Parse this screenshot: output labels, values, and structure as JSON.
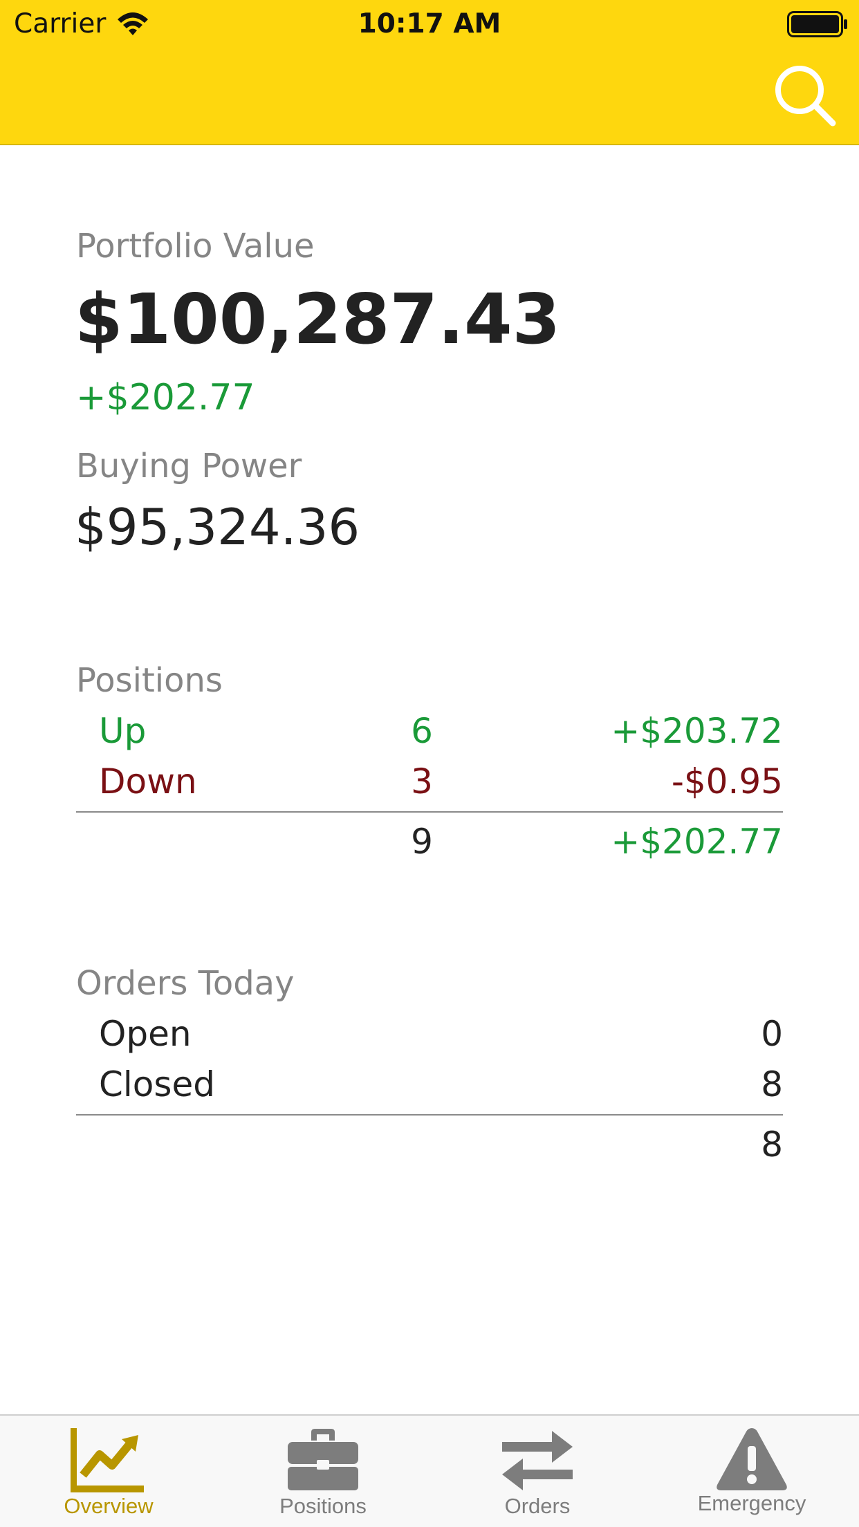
{
  "status_bar": {
    "carrier": "Carrier",
    "time": "10:17 AM",
    "wifi_icon": "wifi-icon",
    "battery_icon": "battery-icon"
  },
  "header": {
    "search_icon": "search-icon",
    "background_color": "#fed70e"
  },
  "portfolio": {
    "label": "Portfolio Value",
    "value": "$100,287.43",
    "change": "+$202.77",
    "buying_power_label": "Buying Power",
    "buying_power_value": "$95,324.36"
  },
  "positions": {
    "title": "Positions",
    "rows": [
      {
        "label": "Up",
        "count": "6",
        "amount": "+$203.72",
        "status": "up"
      },
      {
        "label": "Down",
        "count": "3",
        "amount": "-$0.95",
        "status": "down"
      }
    ],
    "total": {
      "count": "9",
      "amount": "+$202.77"
    }
  },
  "orders_today": {
    "title": "Orders Today",
    "rows": [
      {
        "label": "Open",
        "count": "0"
      },
      {
        "label": "Closed",
        "count": "8"
      }
    ],
    "total": "8"
  },
  "tabbar": {
    "tabs": [
      {
        "label": "Overview",
        "icon": "chart-icon",
        "active": true
      },
      {
        "label": "Positions",
        "icon": "briefcase-icon",
        "active": false
      },
      {
        "label": "Orders",
        "icon": "swap-arrows-icon",
        "active": false
      },
      {
        "label": "Emergency",
        "icon": "warning-icon",
        "active": false
      }
    ]
  },
  "colors": {
    "positive": "#1a9a38",
    "negative": "#7a1014",
    "accent_active_tab": "#b89600",
    "inactive_tab": "#7d7d7d"
  }
}
